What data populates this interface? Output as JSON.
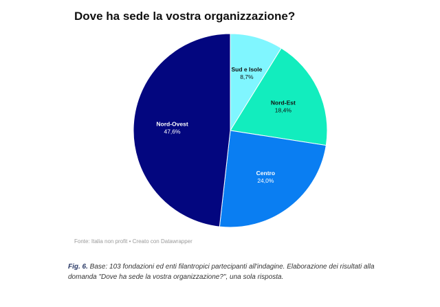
{
  "chart_data": {
    "type": "pie",
    "title": "Dove ha sede la vostra organizzazione?",
    "slices": [
      {
        "label": "Sud e Isole",
        "value": 8.7,
        "display": "8,7%",
        "color": "#80f6ff",
        "text_color": "#111111"
      },
      {
        "label": "Nord-Est",
        "value": 18.4,
        "display": "18,4%",
        "color": "#12edbe",
        "text_color": "#111111"
      },
      {
        "label": "Centro",
        "value": 24.0,
        "display": "24,0%",
        "color": "#0a7ef2",
        "text_color": "#ffffff"
      },
      {
        "label": "Nord-Ovest",
        "value": 47.6,
        "display": "47,6%",
        "color": "#03067f",
        "text_color": "#ffffff"
      }
    ],
    "start": "12 o'clock",
    "direction": "clockwise"
  },
  "source": "Fonte: Italia non profit • Creato con Datawrapper",
  "caption": {
    "fig": "Fig. 6.",
    "text": " Base: 103 fondazioni ed enti filantropici partecipanti all'indagine. Elaborazione dei risultati alla domanda \"Dove ha sede la vostra organizzazione?\", una sola risposta."
  }
}
